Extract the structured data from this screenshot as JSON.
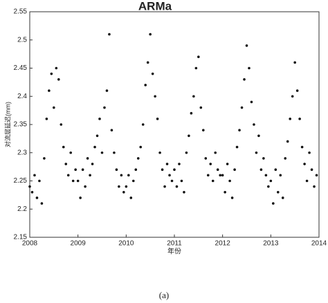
{
  "chart_data": {
    "type": "scatter",
    "title": "ARMa",
    "ylabel": "对流层延迟(mm)",
    "xlabel": "年份",
    "caption": "(a)",
    "color": "#111111",
    "grid": false,
    "xlim": [
      2008,
      2014
    ],
    "xticks": [
      2008,
      2009,
      2010,
      2011,
      2012,
      2013,
      2014
    ],
    "ylim": [
      2.15,
      2.55
    ],
    "yticks": [
      2.15,
      2.2,
      2.25,
      2.3,
      2.35,
      2.4,
      2.45,
      2.5,
      2.55
    ],
    "x": [
      2008,
      2008.05,
      2008.1,
      2008.15,
      2008.2,
      2008.25,
      2008.3,
      2008.35,
      2008.4,
      2008.45,
      2008.5,
      2008.55,
      2008.6,
      2008.65,
      2008.7,
      2008.75,
      2008.8,
      2008.85,
      2008.9,
      2008.95,
      2009,
      2009.05,
      2009.1,
      2009.15,
      2009.2,
      2009.25,
      2009.3,
      2009.35,
      2009.4,
      2009.45,
      2009.5,
      2009.55,
      2009.6,
      2009.65,
      2009.7,
      2009.75,
      2009.8,
      2009.85,
      2009.9,
      2009.95,
      2010,
      2010.05,
      2010.1,
      2010.15,
      2010.2,
      2010.25,
      2010.3,
      2010.35,
      2010.4,
      2010.45,
      2010.5,
      2010.55,
      2010.6,
      2010.65,
      2010.7,
      2010.75,
      2010.8,
      2010.85,
      2010.9,
      2010.95,
      2011,
      2011.05,
      2011.1,
      2011.15,
      2011.2,
      2011.25,
      2011.3,
      2011.35,
      2011.4,
      2011.45,
      2011.5,
      2011.55,
      2011.6,
      2011.65,
      2011.7,
      2011.75,
      2011.8,
      2011.85,
      2011.9,
      2011.95,
      2012,
      2012.05,
      2012.1,
      2012.15,
      2012.2,
      2012.25,
      2012.3,
      2012.35,
      2012.4,
      2012.45,
      2012.5,
      2012.55,
      2012.6,
      2012.65,
      2012.7,
      2012.75,
      2012.8,
      2012.85,
      2012.9,
      2012.95,
      2013,
      2013.05,
      2013.1,
      2013.15,
      2013.2,
      2013.25,
      2013.3,
      2013.35,
      2013.4,
      2013.45,
      2013.5,
      2013.55,
      2013.6,
      2013.65,
      2013.7,
      2013.75,
      2013.8,
      2013.85,
      2013.9,
      2013.95
    ],
    "values": [
      2.24,
      2.23,
      2.26,
      2.22,
      2.25,
      2.21,
      2.29,
      2.36,
      2.41,
      2.44,
      2.38,
      2.45,
      2.43,
      2.35,
      2.31,
      2.28,
      2.26,
      2.3,
      2.25,
      2.27,
      2.25,
      2.22,
      2.27,
      2.24,
      2.29,
      2.26,
      2.28,
      2.31,
      2.33,
      2.36,
      2.3,
      2.38,
      2.41,
      2.51,
      2.34,
      2.3,
      2.27,
      2.24,
      2.26,
      2.23,
      2.24,
      2.26,
      2.22,
      2.25,
      2.27,
      2.29,
      2.31,
      2.35,
      2.42,
      2.46,
      2.51,
      2.44,
      2.4,
      2.36,
      2.3,
      2.27,
      2.24,
      2.28,
      2.26,
      2.25,
      2.27,
      2.24,
      2.28,
      2.25,
      2.23,
      2.3,
      2.33,
      2.37,
      2.4,
      2.45,
      2.47,
      2.38,
      2.34,
      2.29,
      2.26,
      2.28,
      2.25,
      2.3,
      2.27,
      2.26,
      2.26,
      2.23,
      2.28,
      2.25,
      2.22,
      2.27,
      2.31,
      2.34,
      2.38,
      2.43,
      2.49,
      2.45,
      2.39,
      2.35,
      2.3,
      2.33,
      2.27,
      2.29,
      2.26,
      2.24,
      2.25,
      2.21,
      2.27,
      2.23,
      2.26,
      2.22,
      2.29,
      2.32,
      2.36,
      2.4,
      2.46,
      2.41,
      2.36,
      2.31,
      2.28,
      2.25,
      2.3,
      2.27,
      2.24,
      2.26
    ]
  }
}
